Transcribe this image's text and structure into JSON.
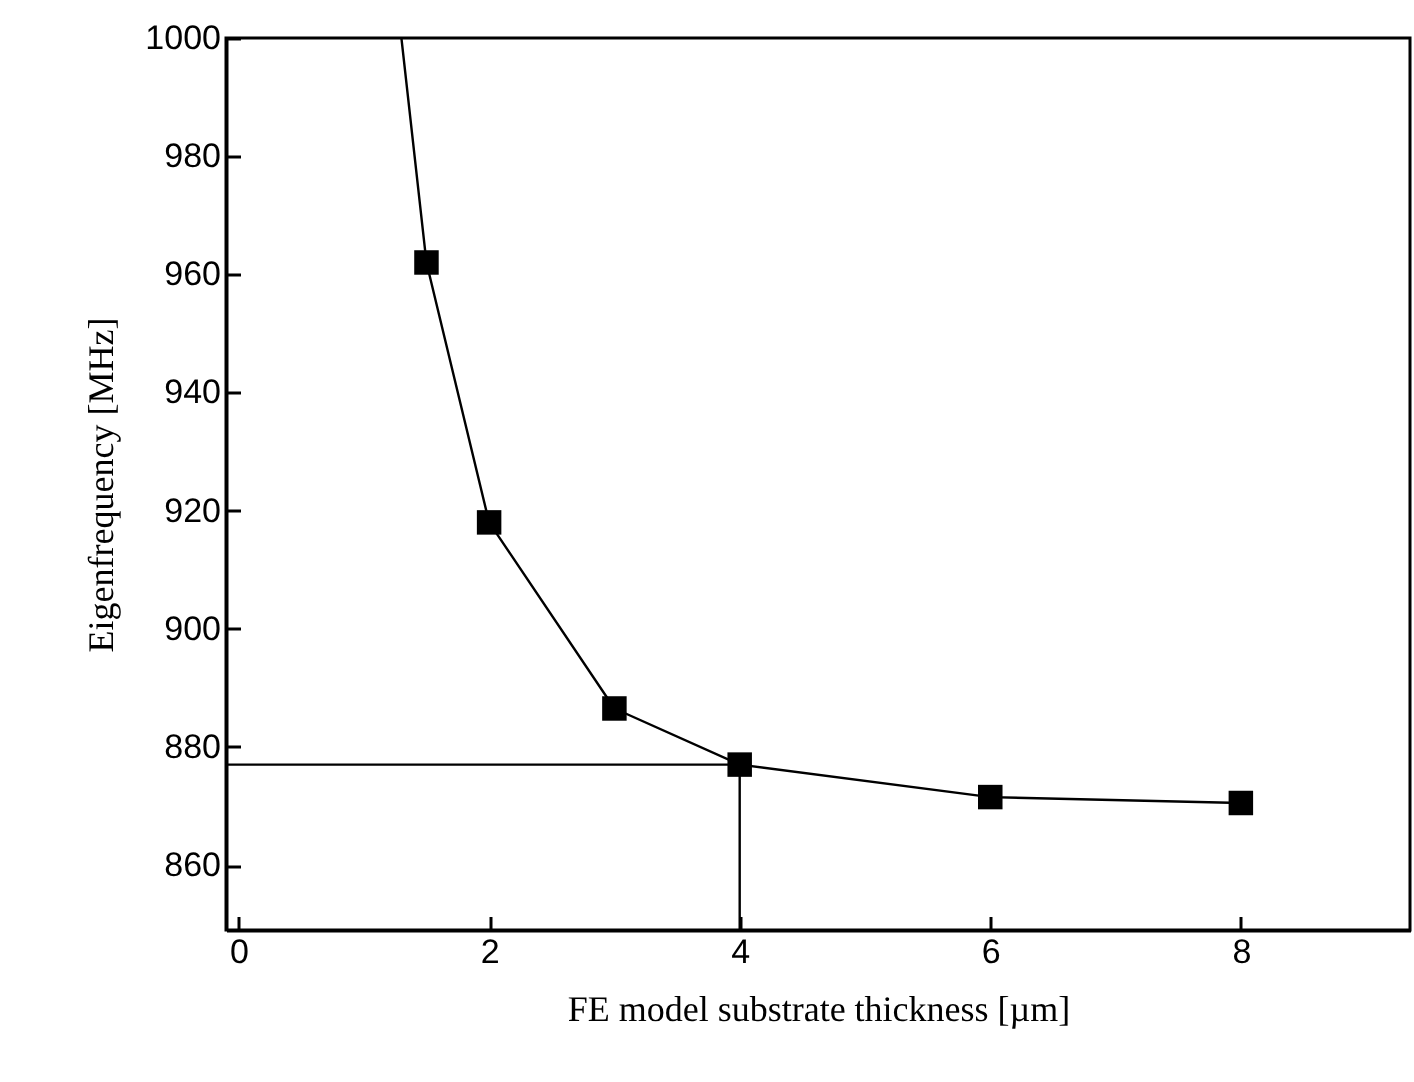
{
  "chart_data": {
    "type": "line",
    "xlabel": "FE model substrate thickness [µm]",
    "ylabel": "Eigenfrequency [MHz]",
    "xlim": [
      -0.1,
      9.35
    ],
    "xticks": [
      0,
      2,
      4,
      6,
      8
    ],
    "ylim": [
      849,
      1000
    ],
    "yticks": [
      860,
      880,
      900,
      920,
      940,
      960,
      980,
      1000
    ],
    "series": [
      {
        "color": "#000000",
        "marker": "none",
        "x": [
          1.3,
          1.5,
          2,
          3,
          4,
          6,
          8
        ],
        "values": [
          1000,
          962,
          918,
          886.5,
          877,
          871.5,
          870.5
        ]
      },
      {
        "type": "scatter",
        "color": "#000000",
        "marker": "square",
        "x": [
          1.5,
          2,
          3,
          4,
          6,
          8
        ],
        "values": [
          962,
          918,
          886.5,
          877,
          871.5,
          870.5
        ]
      },
      {
        "color": "#000000",
        "marker": "none",
        "x": [
          -0.1,
          4,
          4
        ],
        "values": [
          877,
          877,
          849
        ]
      }
    ]
  }
}
